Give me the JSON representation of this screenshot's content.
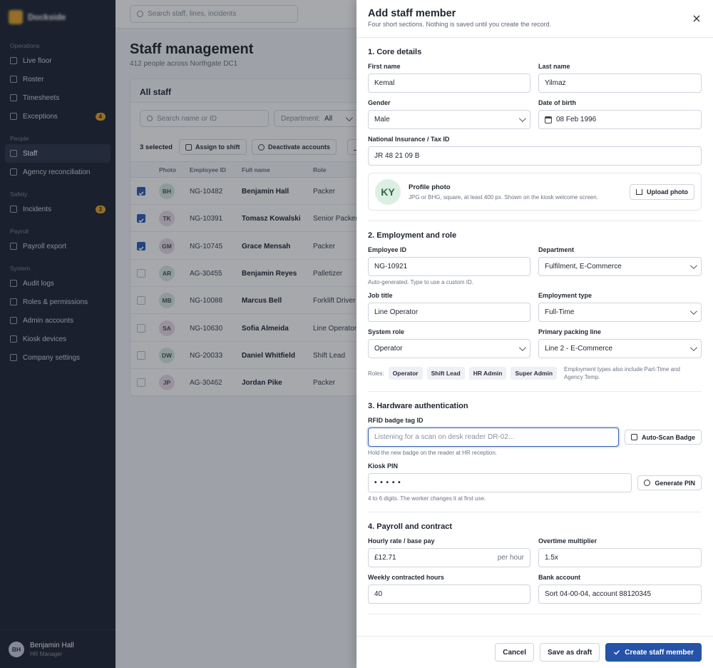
{
  "sidebar": {
    "brand": "Dockside",
    "groups": [
      {
        "title": "Operations",
        "items": [
          {
            "label": "Live floor"
          },
          {
            "label": "Roster"
          },
          {
            "label": "Timesheets"
          },
          {
            "label": "Exceptions",
            "badge": 4
          }
        ]
      },
      {
        "title": "People",
        "items": [
          {
            "label": "Staff",
            "active": true
          },
          {
            "label": "Agency reconciliation"
          }
        ]
      },
      {
        "title": "Safety",
        "items": [
          {
            "label": "Incidents",
            "badge": 3
          }
        ]
      },
      {
        "title": "Payroll",
        "items": [
          {
            "label": "Payroll export"
          }
        ]
      },
      {
        "title": "System",
        "items": [
          {
            "label": "Audit logs"
          },
          {
            "label": "Roles & permissions"
          },
          {
            "label": "Admin accounts"
          },
          {
            "label": "Kiosk devices"
          },
          {
            "label": "Company settings"
          }
        ]
      }
    ],
    "user": {
      "initials": "BH",
      "name": "Benjamin Hall",
      "role": "HR Manager"
    }
  },
  "topbar": {
    "search": "Search staff, lines, incidents"
  },
  "page": {
    "title": "Staff management",
    "subtitle": "412 people across Northgate DC1"
  },
  "card": {
    "title": "All staff",
    "search": "Search name or ID",
    "filter_label": "Department:",
    "filter_value": "All",
    "selected_count": "3 selected",
    "actions": [
      "Assign to shift",
      "Deactivate accounts"
    ],
    "columns": [
      "Photo",
      "Employee ID",
      "Full name",
      "Role"
    ],
    "rows": [
      {
        "selected": true,
        "initials": "BH",
        "id": "NG-10482",
        "name": "Benjamin Hall",
        "role": "Packer"
      },
      {
        "selected": true,
        "initials": "TK",
        "id": "NG-10391",
        "name": "Tomasz Kowalski",
        "role": "Senior Packer"
      },
      {
        "selected": true,
        "initials": "GM",
        "id": "NG-10745",
        "name": "Grace Mensah",
        "role": "Packer"
      },
      {
        "selected": false,
        "initials": "AR",
        "id": "AG-30455",
        "name": "Benjamin Reyes",
        "role": "Palletizer"
      },
      {
        "selected": false,
        "initials": "MB",
        "id": "NG-10088",
        "name": "Marcus Bell",
        "role": "Forklift Driver"
      },
      {
        "selected": false,
        "initials": "SA",
        "id": "NG-10630",
        "name": "Sofia Almeida",
        "role": "Line Operator"
      },
      {
        "selected": false,
        "initials": "DW",
        "id": "NG-20033",
        "name": "Daniel Whitfield",
        "role": "Shift Lead"
      },
      {
        "selected": false,
        "initials": "JP",
        "id": "AG-30462",
        "name": "Jordan Pike",
        "role": "Packer"
      }
    ]
  },
  "drawer": {
    "title": "Add staff member",
    "subtitle": "Four short sections. Nothing is saved until you create the record.",
    "sections": [
      {
        "title": "1. Core details",
        "fields": [
          {
            "label": "First name",
            "value": "Kemal"
          },
          {
            "label": "Last name",
            "value": "Yilmaz"
          },
          {
            "label": "Gender",
            "value": "Male",
            "select": true
          },
          {
            "label": "Date of birth",
            "value": "08 Feb 1996",
            "icon": "calendar"
          },
          {
            "label": "National Insurance / Tax ID",
            "value": "JR 48 21 09 B",
            "wide": true
          }
        ],
        "photo": {
          "initials": "KY",
          "title": "Profile photo",
          "text": "JPG or BHG, square, at least 400 px. Shown on the kiosk welcome screen.",
          "button": "Upload photo"
        }
      },
      {
        "title": "2. Employment and role",
        "fields": [
          {
            "label": "Employee ID",
            "value": "NG-10921",
            "hint": "Auto-generated. Type to use a custom ID."
          },
          {
            "label": "Department",
            "value": "Fulfilment, E-Commerce",
            "select": true
          },
          {
            "label": "Job title",
            "value": "Line Operator"
          },
          {
            "label": "Employment type",
            "value": "Full-Time",
            "select": true
          },
          {
            "label": "System role",
            "value": "Operator",
            "select": true
          },
          {
            "label": "Primary packing line",
            "value": "Line 2 - E-Commerce",
            "select": true
          }
        ],
        "roles": {
          "label": "Roles:",
          "items": [
            "Operator",
            "Shift Lead",
            "HR Admin",
            "Super Admin"
          ],
          "note": "Employment types also include Part-Time and Agency Temp."
        }
      },
      {
        "title": "3. Hardware authentication",
        "fields": [
          {
            "label": "RFID badge tag ID",
            "placeholder": "Listening for a scan on desk reader DR-02...",
            "button": "Auto-Scan Badge",
            "hint": "Hold the new badge on the reader at HR reception.",
            "wide": true,
            "focused": true
          },
          {
            "label": "Kiosk PIN",
            "value": "• • • • •",
            "button": "Generate PIN",
            "hint": "4 to 6 digits. The worker changes it at first use.",
            "wide": true
          }
        ]
      },
      {
        "title": "4. Payroll and contract",
        "fields": [
          {
            "label": "Hourly rate / base pay",
            "value": "£12.71",
            "suffix": "per hour"
          },
          {
            "label": "Overtime multiplier",
            "value": "1.5x"
          },
          {
            "label": "Weekly contracted hours",
            "value": "40"
          },
          {
            "label": "Bank account",
            "value": "Sort 04-00-04, account 88120345"
          }
        ]
      }
    ],
    "footer": {
      "cancel": "Cancel",
      "draft": "Save as draft",
      "create": "Create staff member"
    }
  }
}
